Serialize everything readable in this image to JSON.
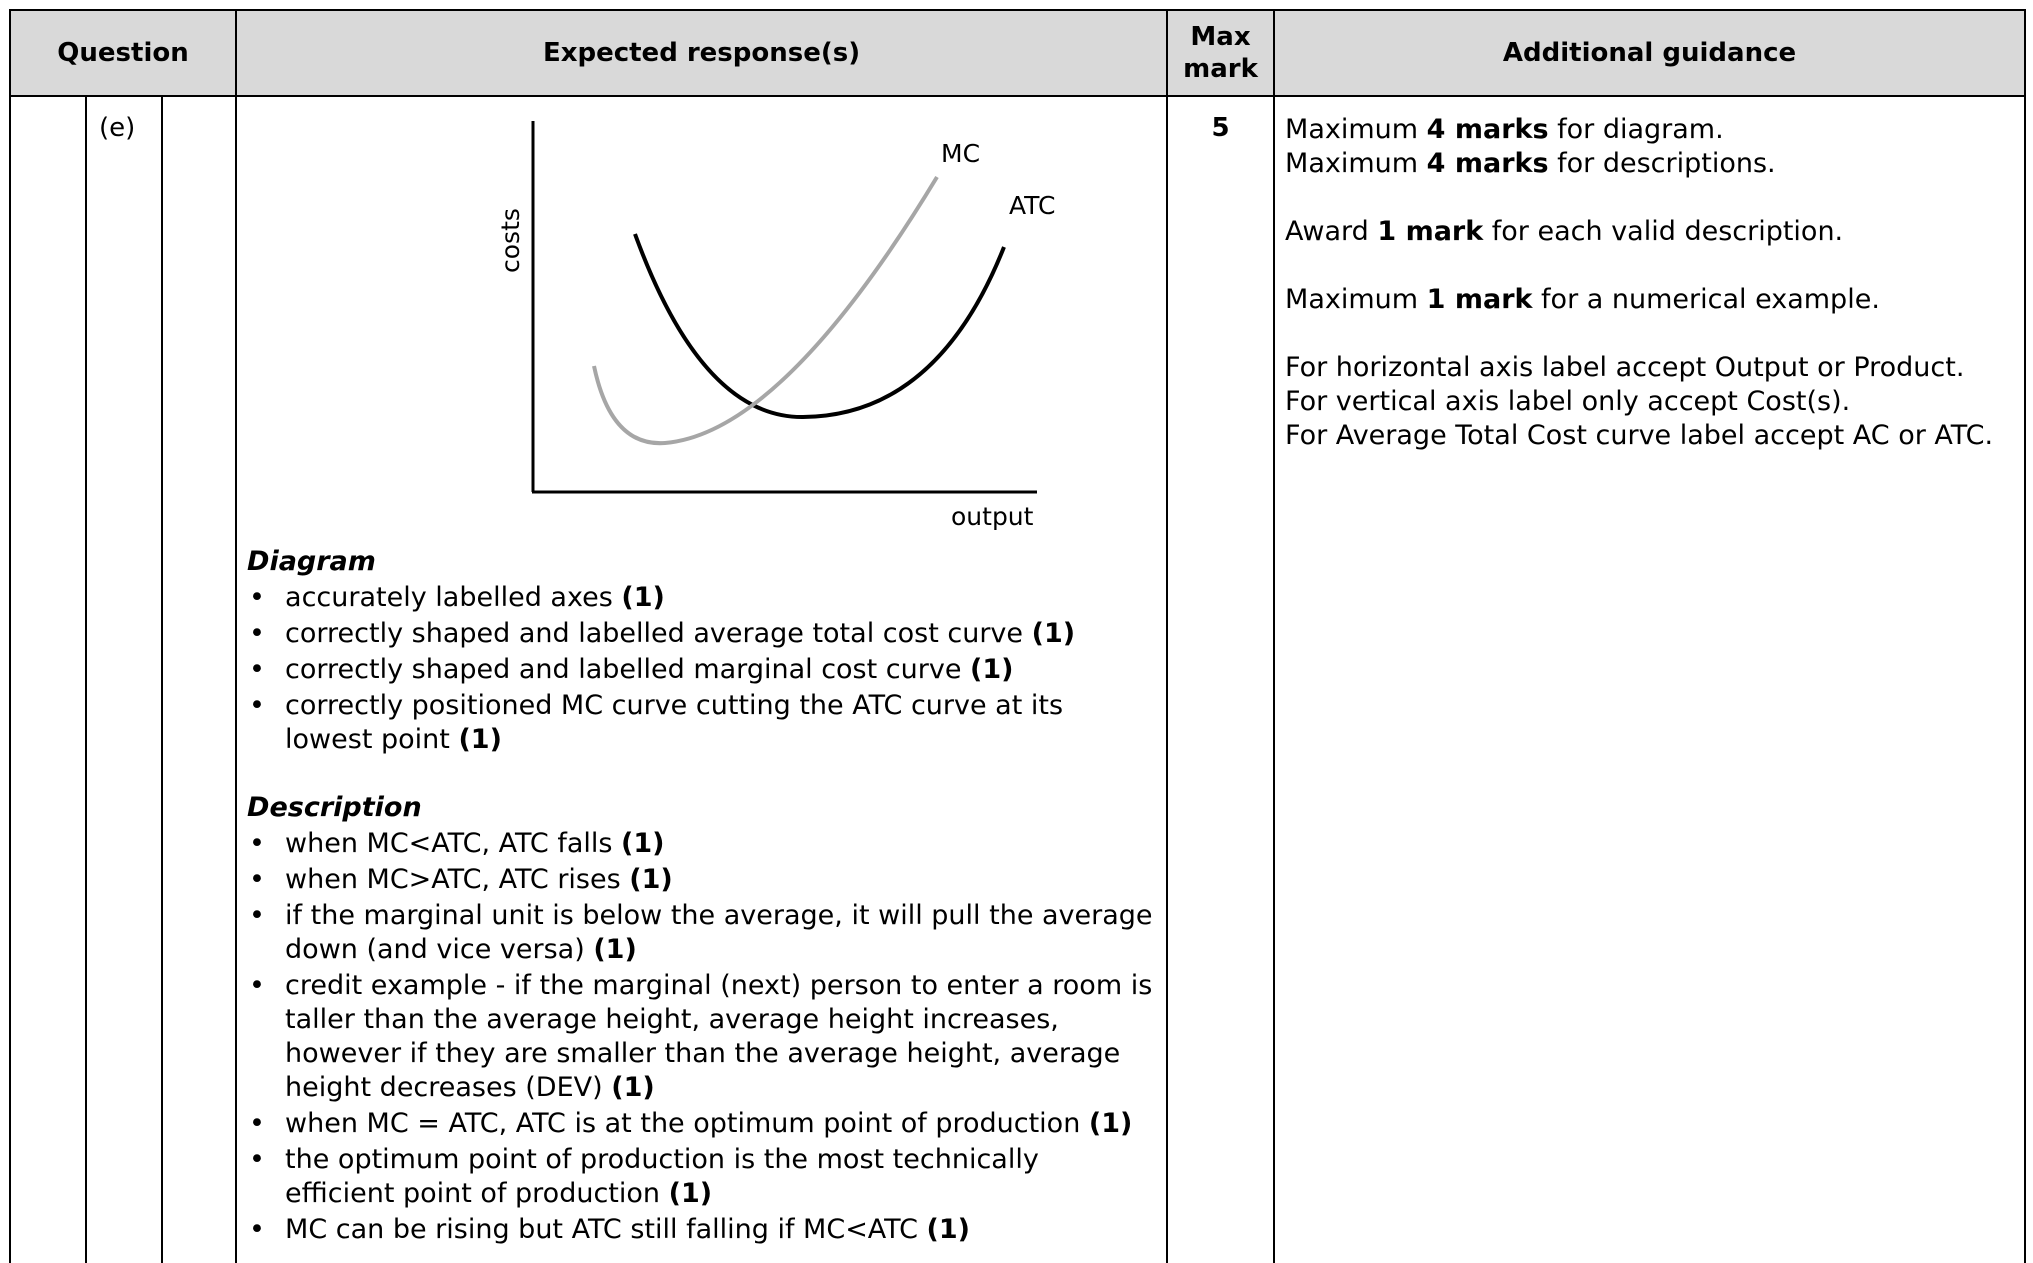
{
  "header": {
    "question": "Question",
    "expected": "Expected response(s)",
    "max_mark_line1": "Max",
    "max_mark_line2": "mark",
    "guidance": "Additional guidance"
  },
  "row": {
    "part": "(e)",
    "max_mark": "5"
  },
  "diagram": {
    "y_label": "costs",
    "x_label": "output",
    "mc_label": "MC",
    "atc_label": "ATC",
    "colors": {
      "atc": "#000000",
      "mc": "#a6a6a6",
      "axes": "#000000"
    }
  },
  "diagram_criteria": {
    "title": "Diagram",
    "items": [
      {
        "text": "accurately labelled axes",
        "mark": "(1)"
      },
      {
        "text": "correctly shaped and labelled average total cost curve",
        "mark": "(1)"
      },
      {
        "text": "correctly shaped and labelled marginal cost curve",
        "mark": "(1)"
      },
      {
        "text": "correctly positioned MC curve cutting the ATC curve at its lowest point",
        "mark": "(1)"
      }
    ]
  },
  "description_criteria": {
    "title": "Description",
    "items": [
      {
        "text": "when MC<ATC, ATC falls",
        "mark": "(1)"
      },
      {
        "text": "when MC>ATC, ATC rises",
        "mark": "(1)"
      },
      {
        "text": "if the marginal unit is below the average, it will pull the average down (and vice versa)",
        "mark": "(1)"
      },
      {
        "text": "credit example - if the marginal (next) person to enter a room is taller than the average height, average height increases, however if they are smaller than the average height, average height decreases (DEV)",
        "mark": "(1)"
      },
      {
        "text": "when MC = ATC, ATC is at the optimum point of production",
        "mark": "(1)"
      },
      {
        "text": "the optimum point of production is the most technically efficient point of production",
        "mark": "(1)"
      },
      {
        "text": "MC can be rising but ATC still falling if MC<ATC",
        "mark": "(1)"
      }
    ]
  },
  "guidance": {
    "l1_pre": "Maximum ",
    "l1_bold": "4 marks",
    "l1_post": " for diagram.",
    "l2_pre": "Maximum ",
    "l2_bold": "4 marks",
    "l2_post": " for descriptions.",
    "l3_pre": "Award ",
    "l3_bold": "1 mark",
    "l3_post": " for each valid description.",
    "l4_pre": "Maximum ",
    "l4_bold": "1 mark",
    "l4_post": " for a numerical example.",
    "l5": "For horizontal axis label accept Output or Product.",
    "l6": "For vertical axis label only accept Cost(s).",
    "l7": "For Average Total Cost curve label accept AC or ATC."
  }
}
